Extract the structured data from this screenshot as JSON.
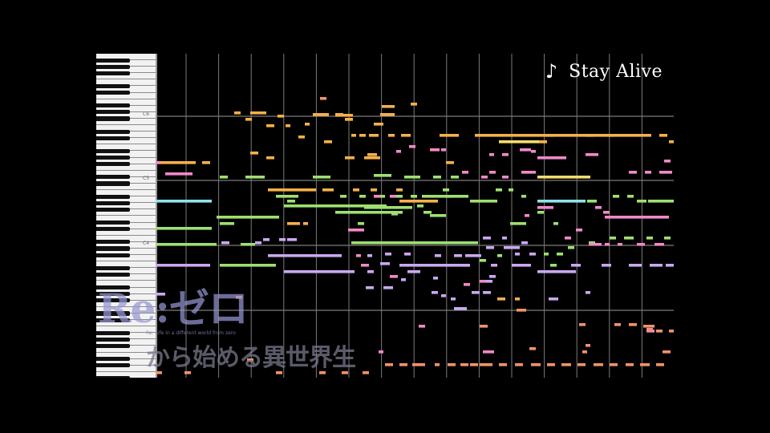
{
  "title": {
    "icon": "music-note-icon",
    "note_glyph": "♪",
    "text": "Stay Alive"
  },
  "keyboard": {
    "octave_labels": [
      "C6",
      "C5",
      "C4"
    ]
  },
  "logo": {
    "main": "Re:ゼロ",
    "sub": "Re: Life in a different world from zero",
    "japanese": "から始める異世界生活"
  },
  "note_colors": {
    "orange": "#f5b04a",
    "yellow": "#f2dc6e",
    "green": "#9ee070",
    "cyan": "#8fe3e8",
    "purple": "#c9a8f0",
    "pink": "#f089c8",
    "salmon": "#f2926a"
  }
}
